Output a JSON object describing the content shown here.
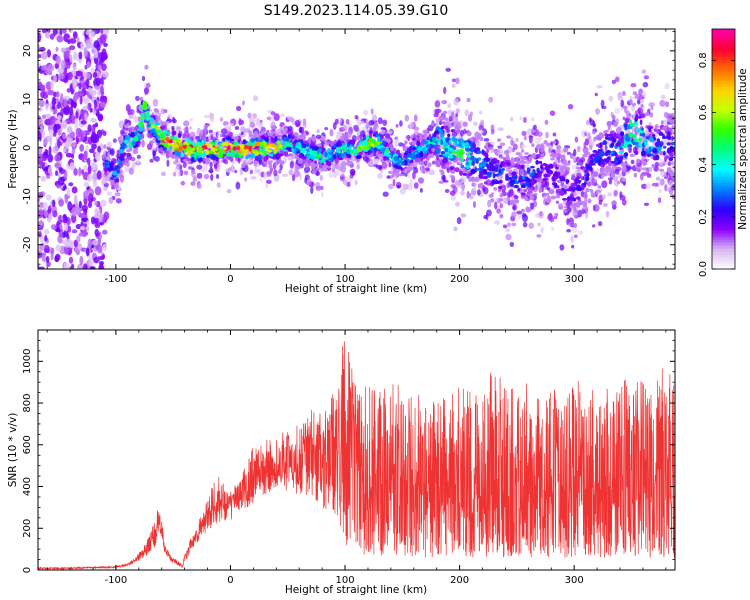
{
  "figure": {
    "title": "S149.2023.114.05.39.G10"
  },
  "colorbar": {
    "label": "Normalized spectral amplitude",
    "ticks": [
      "0.0",
      "0.2",
      "0.4",
      "0.6",
      "0.8"
    ],
    "tick_values": [
      0.0,
      0.2,
      0.4,
      0.6,
      0.8
    ],
    "range": [
      0,
      0.92
    ],
    "colors": [
      "#ffffff",
      "#d8b6f2",
      "#8c00ff",
      "#2b00ff",
      "#0080ff",
      "#00ffff",
      "#00ff80",
      "#33ff00",
      "#c8ff00",
      "#ffd000",
      "#ff6a00",
      "#ff0030",
      "#ff00b0"
    ]
  },
  "chart_data": [
    {
      "type": "heatmap",
      "xlabel": "Height of straight line (km)",
      "ylabel": "Frequency (Hz)",
      "xlim": [
        -168,
        388
      ],
      "ylim": [
        -25,
        24.5
      ],
      "xticks": [
        -100,
        0,
        100,
        200,
        300
      ],
      "yticks": [
        -20,
        -10,
        0,
        10,
        20
      ],
      "grid": false,
      "ridge": {
        "description_source": "dominant energy band",
        "x": [
          -108,
          -100,
          -95,
          -90,
          -85,
          -80,
          -75,
          -70,
          -65,
          -60,
          -50,
          -40,
          -30,
          -20,
          -10,
          0,
          10,
          20,
          30,
          40,
          50,
          60,
          70,
          80,
          90,
          100,
          110,
          120,
          130,
          140,
          150,
          160,
          170,
          180,
          190,
          200,
          210,
          220,
          230,
          240,
          250,
          260,
          270,
          280,
          290,
          300,
          310,
          320,
          330,
          340,
          350,
          360,
          370,
          380,
          385
        ],
        "y": [
          -3,
          -6,
          -1,
          2,
          1,
          3,
          9,
          5,
          4,
          2,
          1,
          0,
          -0.5,
          0,
          -0.5,
          0,
          -0.5,
          0,
          0,
          0,
          1,
          0,
          -1,
          -2,
          -1,
          0,
          -0.5,
          1,
          1,
          -2,
          -3,
          -1,
          0,
          2,
          0,
          -1,
          -2,
          -3,
          -5,
          -6,
          -7,
          -6,
          -4,
          -5,
          -8,
          -9,
          -6,
          -2,
          0,
          -1,
          4,
          2,
          0,
          1,
          0
        ],
        "peak_amplitude": [
          0.3,
          0.35,
          0.4,
          0.45,
          0.5,
          0.55,
          0.6,
          0.6,
          0.6,
          0.85,
          0.92,
          0.92,
          0.9,
          0.85,
          0.85,
          0.9,
          0.85,
          0.88,
          0.85,
          0.75,
          0.5,
          0.45,
          0.5,
          0.5,
          0.45,
          0.5,
          0.5,
          0.75,
          0.55,
          0.45,
          0.4,
          0.4,
          0.45,
          0.45,
          0.45,
          0.55,
          0.45,
          0.35,
          0.3,
          0.3,
          0.3,
          0.3,
          0.25,
          0.25,
          0.25,
          0.25,
          0.25,
          0.25,
          0.3,
          0.35,
          0.55,
          0.45,
          0.35,
          0.3,
          0.3
        ]
      }
    },
    {
      "type": "line",
      "xlabel": "Height of straight line (km)",
      "ylabel": "SNR (10 * v/v)",
      "xlim": [
        -168,
        388
      ],
      "ylim": [
        0,
        1150
      ],
      "xticks": [
        -100,
        0,
        100,
        200,
        300
      ],
      "yticks": [
        0,
        200,
        400,
        600,
        800,
        1000
      ],
      "grid": false,
      "series": [
        {
          "color": "#ef3333",
          "x": [
            -168,
            -140,
            -120,
            -100,
            -90,
            -85,
            -80,
            -75,
            -70,
            -65,
            -62,
            -60,
            -58,
            -55,
            -50,
            -45,
            -42,
            -40,
            -35,
            -30,
            -25,
            -20,
            -15,
            -10,
            -5,
            0,
            5,
            10,
            20,
            30,
            40,
            50,
            60,
            70,
            80,
            90,
            100,
            110,
            120,
            130,
            140,
            150,
            160,
            170,
            180,
            190,
            200,
            210,
            220,
            230,
            240,
            250,
            260,
            270,
            280,
            290,
            300,
            310,
            320,
            330,
            340,
            350,
            360,
            370,
            380,
            388
          ],
          "envelope_low": [
            5,
            5,
            8,
            10,
            20,
            30,
            40,
            60,
            80,
            120,
            180,
            150,
            90,
            60,
            30,
            20,
            10,
            40,
            80,
            120,
            160,
            180,
            200,
            210,
            220,
            230,
            260,
            280,
            320,
            360,
            370,
            380,
            360,
            340,
            300,
            250,
            100,
            80,
            70,
            70,
            70,
            70,
            60,
            60,
            60,
            60,
            60,
            60,
            60,
            60,
            60,
            60,
            60,
            60,
            60,
            60,
            60,
            60,
            60,
            60,
            60,
            60,
            60,
            60,
            60,
            60
          ],
          "envelope_high": [
            12,
            12,
            15,
            20,
            30,
            50,
            80,
            120,
            180,
            250,
            340,
            250,
            150,
            100,
            60,
            40,
            20,
            80,
            150,
            200,
            280,
            340,
            420,
            450,
            420,
            380,
            420,
            460,
            600,
            620,
            640,
            680,
            720,
            800,
            750,
            850,
            1150,
            880,
            920,
            850,
            900,
            880,
            840,
            860,
            850,
            820,
            900,
            860,
            840,
            1020,
            880,
            860,
            920,
            880,
            860,
            900,
            920,
            880,
            860,
            880,
            900,
            940,
            920,
            880,
            1060,
            860
          ]
        }
      ]
    }
  ]
}
